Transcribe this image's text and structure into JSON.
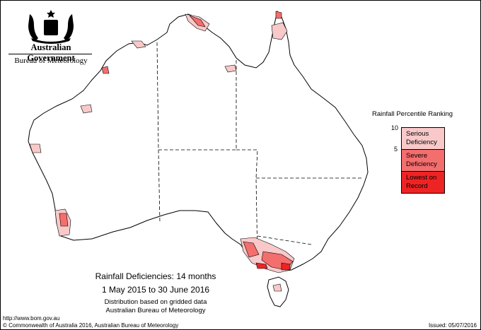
{
  "header": {
    "government": "Australian Government",
    "bureau": "Bureau of Meteorology"
  },
  "legend": {
    "title": "Rainfall Percentile Ranking",
    "ticks": [
      "10",
      "5"
    ],
    "categories": [
      {
        "label1": "Serious",
        "label2": "Deficiency",
        "color": "#f9c9c9"
      },
      {
        "label1": "Severe",
        "label2": "Deficiency",
        "color": "#f46e6e"
      },
      {
        "label1": "Lowest on",
        "label2": "Record",
        "color": "#ee2424"
      }
    ]
  },
  "titles": {
    "line1": "Rainfall Deficiencies: 14 months",
    "line2": "1 May 2015 to 30 June 2016",
    "line3": "Distribution based on gridded data",
    "line4": "Australian Bureau of Meteorology"
  },
  "footer": {
    "url": "http://www.bom.gov.au",
    "copyright": "© Commonwealth of Australia 2016, Australian Bureau of Meteorology",
    "issued": "Issued: 05/07/2016"
  },
  "colors": {
    "serious": "#f9c9c9",
    "severe": "#f46e6e",
    "lowest": "#ee2424",
    "outline": "#000000"
  }
}
